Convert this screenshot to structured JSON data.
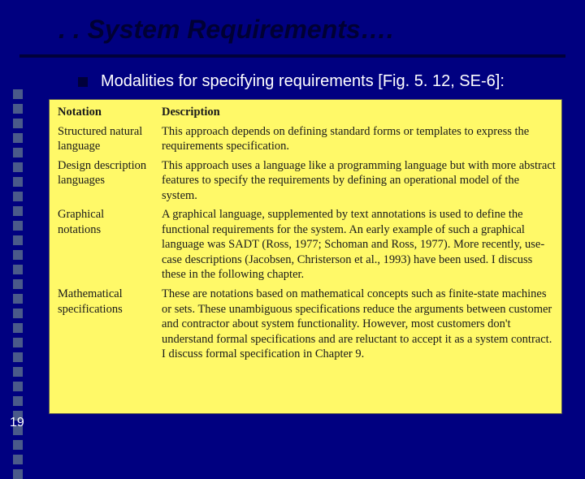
{
  "colors": {
    "background": "#000080",
    "title_color": "#000033",
    "underline_color": "#00003a",
    "bullet_color": "#00003a",
    "bullet_text_color": "#ffffff",
    "table_background": "#fff968",
    "table_text": "#1a1a1a",
    "left_dot_color": "#4a5a8a",
    "slide_number_color": "#ffffff"
  },
  "title": ". . System Requirements….",
  "bullet_text": "Modalities for specifying requirements [Fig. 5. 12, SE-6]:",
  "slide_number": "19",
  "left_dot_count": 27,
  "table": {
    "headers": {
      "notation": "Notation",
      "description": "Description"
    },
    "rows": [
      {
        "notation": "Structured natural language",
        "description": "This approach depends on defining standard forms or templates to express the requirements specification."
      },
      {
        "notation": "Design description languages",
        "description": "This approach uses a language like a programming language but with more abstract features to specify the requirements by defining an operational model of the system."
      },
      {
        "notation": "Graphical notations",
        "description": "A graphical language, supplemented by text annotations is used to define the functional requirements for the system. An early example of such a graphical language was SADT (Ross, 1977; Schoman and Ross, 1977). More recently, use-case descriptions (Jacobsen, Christerson et al., 1993) have been used. I discuss these in the following chapter."
      },
      {
        "notation": "Mathematical specifications",
        "description": "These are notations based on mathematical concepts such as finite-state machines or sets. These unambiguous specifications reduce the arguments between customer and contractor about system functionality. However, most customers don't understand formal specifications and are reluctant to accept it as a system contract. I discuss formal specification in Chapter 9."
      }
    ]
  }
}
